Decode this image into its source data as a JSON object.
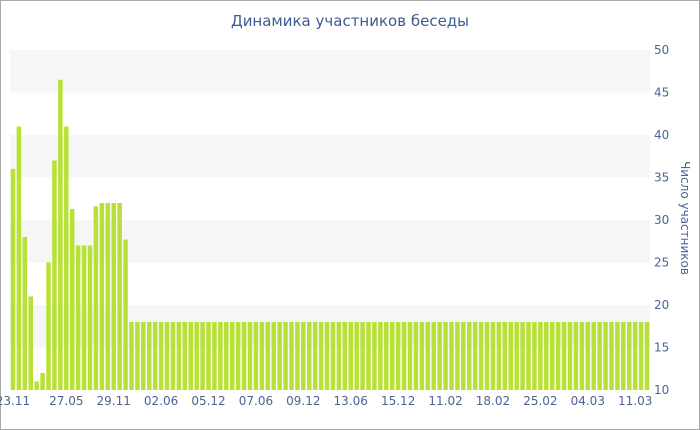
{
  "chart_data": {
    "type": "bar",
    "title": "Динамика участников беседы",
    "ylabel": "Число участников",
    "ylim": [
      10,
      50
    ],
    "yticks": [
      10,
      15,
      20,
      25,
      30,
      35,
      40,
      45,
      50
    ],
    "y_axis_side": "right",
    "grid": "alternating horizontal bands",
    "bar_color": "#b7e136",
    "band_color": "#f6f6f6",
    "text_color": "#4f6296",
    "x_tick_labels": [
      {
        "label": "23.11",
        "bar": 0
      },
      {
        "label": "27.05",
        "bar": 9
      },
      {
        "label": "29.11",
        "bar": 17
      },
      {
        "label": "02.06",
        "bar": 25
      },
      {
        "label": "05.12",
        "bar": 33
      },
      {
        "label": "07.06",
        "bar": 41
      },
      {
        "label": "09.12",
        "bar": 49
      },
      {
        "label": "13.06",
        "bar": 57
      },
      {
        "label": "15.12",
        "bar": 65
      },
      {
        "label": "11.02",
        "bar": 73
      },
      {
        "label": "18.02",
        "bar": 81
      },
      {
        "label": "25.02",
        "bar": 89
      },
      {
        "label": "04.03",
        "bar": 97
      },
      {
        "label": "11.03",
        "bar": 105
      }
    ],
    "values": [
      36,
      41,
      28,
      21,
      11,
      12,
      25,
      37,
      46.5,
      41,
      31.3,
      27,
      27,
      27,
      31.6,
      32,
      32,
      32,
      32,
      27.7,
      18,
      18,
      18,
      18,
      18,
      18,
      18,
      18,
      18,
      18,
      18,
      18,
      18,
      18,
      18,
      18,
      18,
      18,
      18,
      18,
      18,
      18,
      18,
      18,
      18,
      18,
      18,
      18,
      18,
      18,
      18,
      18,
      18,
      18,
      18,
      18,
      18,
      18,
      18,
      18,
      18,
      18,
      18,
      18,
      18,
      18,
      18,
      18,
      18,
      18,
      18,
      18,
      18,
      18,
      18,
      18,
      18,
      18,
      18,
      18,
      18,
      18,
      18,
      18,
      18,
      18,
      18,
      18,
      18,
      18,
      18,
      18,
      18,
      18,
      18,
      18,
      18,
      18,
      18,
      18,
      18,
      18,
      18,
      18,
      18,
      18,
      18,
      18
    ]
  }
}
